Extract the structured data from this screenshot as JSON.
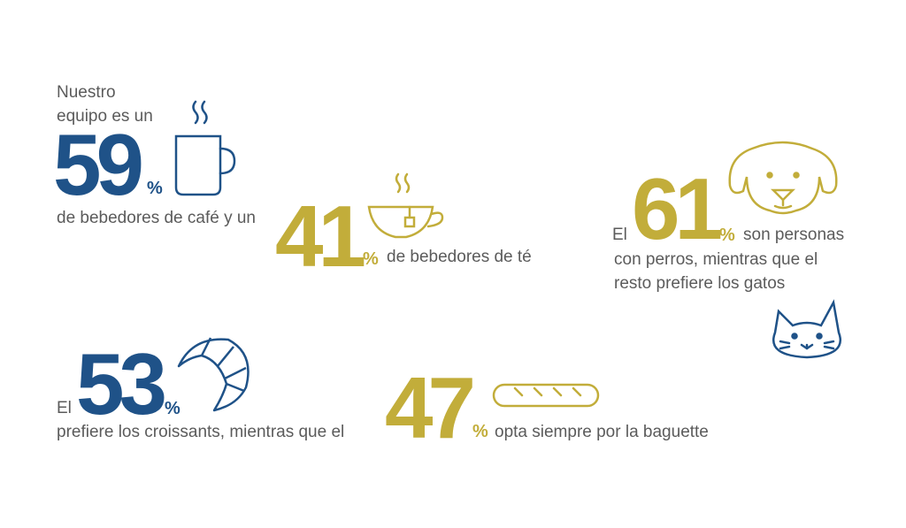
{
  "colors": {
    "blue": "#1f5288",
    "gold": "#c2ad3a",
    "text": "#5b5b5b"
  },
  "coffee": {
    "intro_line1": "Nuestro",
    "intro_line2": "equipo es un",
    "value": "59",
    "pct": "%",
    "after": "de bebedores de café y un",
    "icon": "coffee-mug-icon"
  },
  "tea": {
    "value": "41",
    "pct": "%",
    "after": "de bebedores de té",
    "icon": "teacup-icon"
  },
  "dogs": {
    "before": "El",
    "value": "61",
    "pct": "%",
    "after": "son personas",
    "line2": "con perros, mientras que el",
    "line3": "resto prefiere los gatos",
    "icon": "dog-icon",
    "icon2": "cat-icon"
  },
  "croissant": {
    "before": "El",
    "value": "53",
    "pct": "%",
    "after": "prefiere los croissants, mientras que el",
    "icon": "croissant-icon"
  },
  "baguette": {
    "value": "47",
    "pct": "%",
    "after": "opta siempre por la baguette",
    "icon": "baguette-icon"
  }
}
